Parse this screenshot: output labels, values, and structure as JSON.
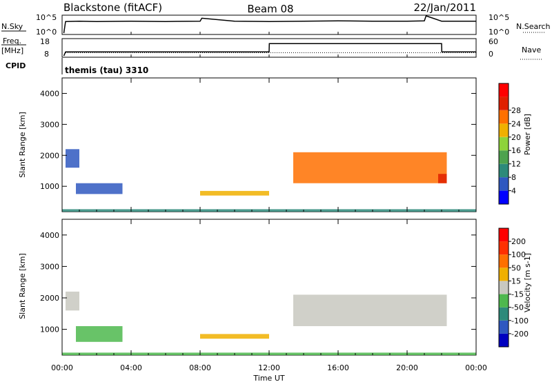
{
  "header": {
    "station": "Blackstone (fitACF)",
    "beam": "Beam 08",
    "date": "22/Jan/2011"
  },
  "panel1": {
    "left_label": "N.Sky",
    "left_ticks": [
      "10^5",
      "10^0"
    ],
    "right_ticks": [
      "10^5",
      "10^0"
    ],
    "right_label": "N.Search"
  },
  "panel2": {
    "left_label_1": "Freq.",
    "left_label_2": "[MHz]",
    "left_ticks": [
      "18",
      "8"
    ],
    "right_ticks": [
      "60",
      "0"
    ],
    "right_label": "Nave"
  },
  "cpid": {
    "label": "CPID",
    "value": "themis (tau) 3310"
  },
  "chart_data": [
    {
      "type": "line",
      "name": "noise",
      "series": [
        {
          "name": "N.Sky",
          "x": [
            0.1,
            0.2,
            1,
            2,
            4,
            6,
            8,
            8.1,
            10,
            12,
            14,
            16,
            18,
            20,
            21,
            21.1,
            22,
            24
          ],
          "y": [
            0,
            3.5,
            3.6,
            3.5,
            3.6,
            3.5,
            3.6,
            4.5,
            3.6,
            3.5,
            3.6,
            3.7,
            3.6,
            3.6,
            3.7,
            5.2,
            3.6,
            3.6
          ]
        }
      ],
      "x_range": [
        0,
        24
      ]
    },
    {
      "type": "line",
      "name": "frequency",
      "series": [
        {
          "name": "Freq.",
          "x": [
            0.1,
            0.2,
            12,
            12.01,
            22,
            22.01,
            24
          ],
          "y": [
            8,
            10.5,
            10.5,
            15.7,
            15.7,
            10.5,
            10.5
          ]
        },
        {
          "name": "Nave",
          "x": [
            0.2,
            24
          ],
          "y": [
            12,
            12
          ]
        }
      ],
      "x_range": [
        0,
        24
      ],
      "ylim": [
        8,
        18
      ]
    },
    {
      "type": "heatmap",
      "name": "power",
      "ylabel": "Slant Range [km]",
      "y_ticks": [
        "1000",
        "2000",
        "3000",
        "4000"
      ],
      "ylim": [
        180,
        4500
      ],
      "colorbar_label": "Power [dB]",
      "colorbar_ticks": [
        "4",
        "8",
        "12",
        "16",
        "20",
        "24",
        "28"
      ],
      "colorbar_colors": [
        "#0000ff",
        "#2f58c0",
        "#2d8a7a",
        "#4ea24e",
        "#8ed33a",
        "#f0b000",
        "#ff7000",
        "#e02000",
        "#ff0000"
      ],
      "regions": [
        {
          "x": [
            0,
            24
          ],
          "y": [
            180,
            260
          ],
          "level": 2
        },
        {
          "x": [
            0.2,
            1
          ],
          "y": [
            1600,
            2200
          ],
          "level": 1
        },
        {
          "x": [
            0.8,
            3.5
          ],
          "y": [
            750,
            1100
          ],
          "level": 1
        },
        {
          "x": [
            8,
            12
          ],
          "y": [
            700,
            850
          ],
          "level": 5
        },
        {
          "x": [
            13.4,
            22.3
          ],
          "y": [
            1100,
            2100
          ],
          "level": 6
        },
        {
          "x": [
            21.8,
            22.3
          ],
          "y": [
            1100,
            1400
          ],
          "level": 7
        }
      ]
    },
    {
      "type": "heatmap",
      "name": "velocity",
      "ylabel": "Slant Range [km]",
      "y_ticks": [
        "1000",
        "2000",
        "3000",
        "4000"
      ],
      "ylim": [
        180,
        4500
      ],
      "colorbar_label": "Velocity [m s-1]",
      "colorbar_ticks": [
        "200",
        "100",
        "50",
        "15",
        "-15",
        "-50",
        "-100",
        "-200"
      ],
      "colorbar_colors": [
        "#0000c0",
        "#2f58c0",
        "#2d8a7a",
        "#4eb84e",
        "#c8c8c0",
        "#f0b000",
        "#ff7000",
        "#ff3000",
        "#ff0000"
      ],
      "regions": [
        {
          "x": [
            0,
            24
          ],
          "y": [
            180,
            260
          ],
          "level": 3
        },
        {
          "x": [
            0.2,
            1
          ],
          "y": [
            1600,
            2200
          ],
          "level": 4
        },
        {
          "x": [
            0.8,
            3.5
          ],
          "y": [
            600,
            1100
          ],
          "level": 3
        },
        {
          "x": [
            8,
            12
          ],
          "y": [
            700,
            850
          ],
          "level": 5
        },
        {
          "x": [
            13.4,
            22.3
          ],
          "y": [
            1100,
            2100
          ],
          "level": 4
        }
      ]
    }
  ],
  "x_axis": {
    "ticks": [
      "00:00",
      "04:00",
      "08:00",
      "12:00",
      "16:00",
      "20:00",
      "00:00"
    ],
    "label": "Time UT"
  }
}
